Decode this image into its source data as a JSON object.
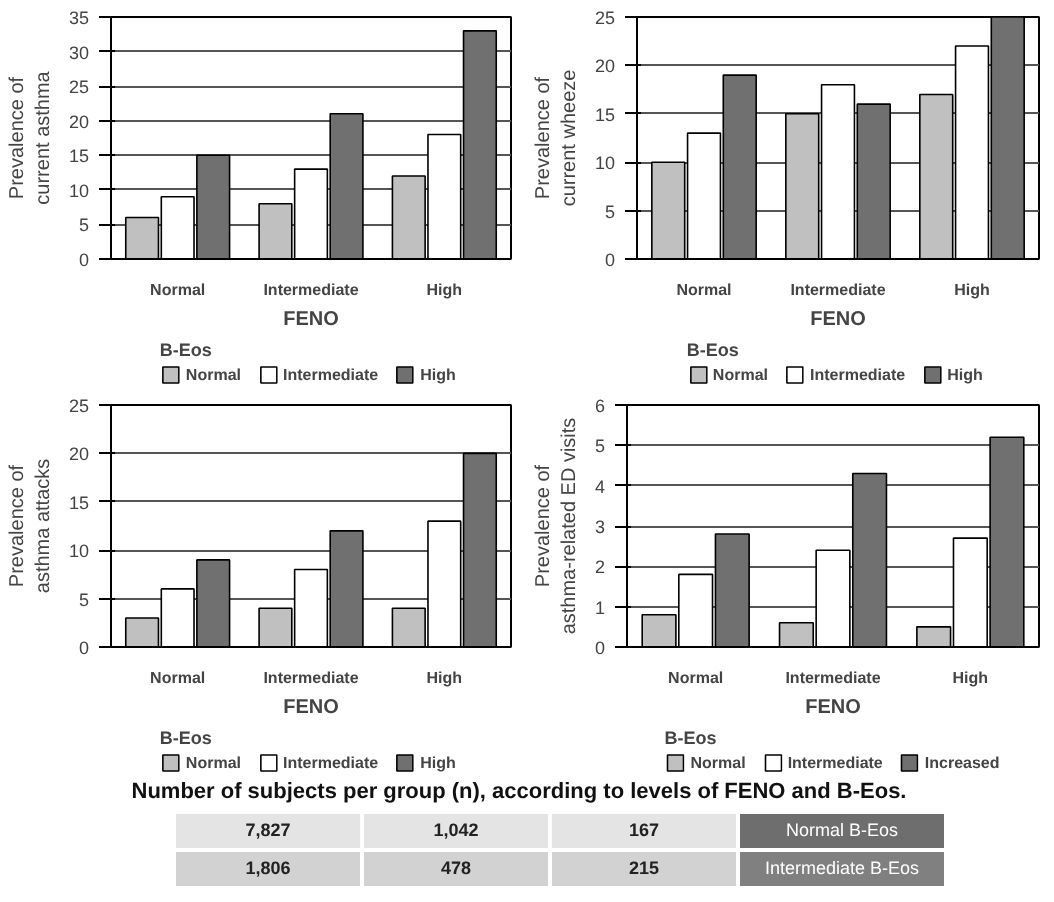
{
  "chart_data": [
    {
      "type": "bar",
      "ylabel": "Prevalence of\ncurrent asthma",
      "xlabel": "FENO",
      "legend_title": "B-Eos",
      "categories": [
        "Normal",
        "Intermediate",
        "High"
      ],
      "series": [
        {
          "name": "Normal",
          "color": "#c0c0c0",
          "values": [
            6,
            8,
            12
          ]
        },
        {
          "name": "Intermediate",
          "color": "#ffffff",
          "values": [
            9,
            13,
            18
          ]
        },
        {
          "name": "High",
          "color": "#707070",
          "values": [
            15,
            21,
            33
          ]
        }
      ],
      "ylim": [
        0,
        35
      ],
      "yticks": [
        0,
        5,
        10,
        15,
        20,
        25,
        30,
        35
      ],
      "grid": "y",
      "legend": "bottom"
    },
    {
      "type": "bar",
      "ylabel": "Prevalence of\ncurrent wheeze",
      "xlabel": "FENO",
      "legend_title": "B-Eos",
      "categories": [
        "Normal",
        "Intermediate",
        "High"
      ],
      "series": [
        {
          "name": "Normal",
          "color": "#c0c0c0",
          "values": [
            10,
            15,
            17
          ]
        },
        {
          "name": "Intermediate",
          "color": "#ffffff",
          "values": [
            13,
            18,
            22
          ]
        },
        {
          "name": "High",
          "color": "#707070",
          "values": [
            19,
            16,
            25
          ]
        }
      ],
      "ylim": [
        0,
        25
      ],
      "yticks": [
        0,
        5,
        10,
        15,
        20,
        25
      ],
      "grid": "y",
      "legend": "bottom"
    },
    {
      "type": "bar",
      "ylabel": "Prevalence of\nasthma attacks",
      "xlabel": "FENO",
      "legend_title": "B-Eos",
      "categories": [
        "Normal",
        "Intermediate",
        "High"
      ],
      "series": [
        {
          "name": "Normal",
          "color": "#c0c0c0",
          "values": [
            3,
            4,
            4
          ]
        },
        {
          "name": "Intermediate",
          "color": "#ffffff",
          "values": [
            6,
            8,
            13
          ]
        },
        {
          "name": "High",
          "color": "#707070",
          "values": [
            9,
            12,
            20
          ]
        }
      ],
      "ylim": [
        0,
        25
      ],
      "yticks": [
        0,
        5,
        10,
        15,
        20,
        25
      ],
      "grid": "y",
      "legend": "bottom"
    },
    {
      "type": "bar",
      "ylabel": "Prevalence of\nasthma-related ED visits",
      "xlabel": "FENO",
      "legend_title": "B-Eos",
      "categories": [
        "Normal",
        "Intermediate",
        "High"
      ],
      "series": [
        {
          "name": "Normal",
          "color": "#c0c0c0",
          "values": [
            0.8,
            0.6,
            0.5
          ]
        },
        {
          "name": "Intermediate",
          "color": "#ffffff",
          "values": [
            1.8,
            2.4,
            2.7
          ]
        },
        {
          "name": "Increased",
          "color": "#707070",
          "values": [
            2.8,
            4.3,
            5.2
          ]
        }
      ],
      "ylim": [
        0,
        6
      ],
      "yticks": [
        0,
        1,
        2,
        3,
        4,
        5,
        6
      ],
      "grid": "y",
      "legend": "bottom"
    },
    {
      "type": "other",
      "title": "Number of subjects per group (n), according to levels of FENO and B-Eos.",
      "cell_labels": [
        [
          "7,827",
          "1,042",
          "167"
        ],
        [
          "1,806",
          "478",
          "215"
        ]
      ],
      "y2_categories": [
        "Normal B-Eos",
        "Intermediate B-Eos"
      ]
    }
  ]
}
